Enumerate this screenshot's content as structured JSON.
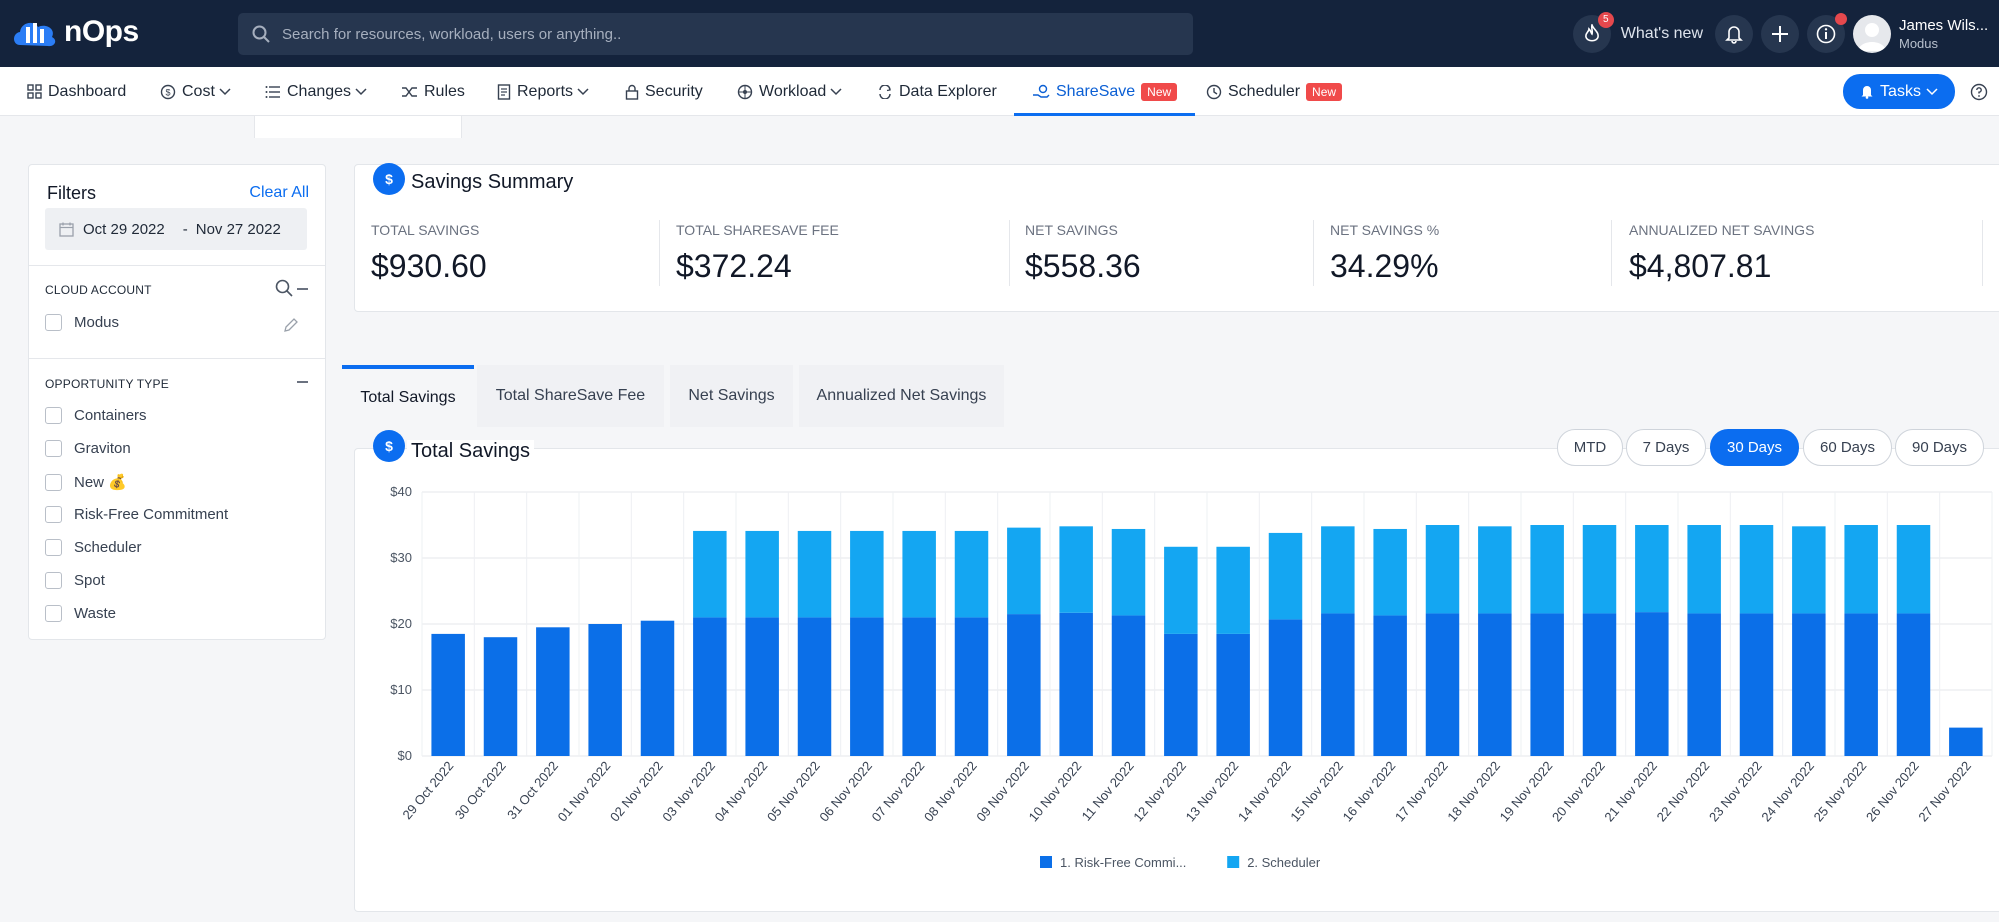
{
  "app": {
    "name": "nOps",
    "brand_color": "#0b6df0"
  },
  "search": {
    "placeholder": "Search for resources, workload, users or anything.."
  },
  "header": {
    "notifications_badge": "5",
    "whats_new": "What's new",
    "user_name": "James Wils...",
    "user_org": "Modus"
  },
  "nav": {
    "dashboard": "Dashboard",
    "cost": "Cost",
    "changes": "Changes",
    "rules": "Rules",
    "reports": "Reports",
    "security": "Security",
    "workload": "Workload",
    "data_explorer": "Data Explorer",
    "sharesave": "ShareSave",
    "scheduler": "Scheduler",
    "new_tag": "New",
    "tasks": "Tasks"
  },
  "filters": {
    "title": "Filters",
    "clear_all": "Clear All",
    "date_from": "Oct 29 2022",
    "date_sep": "-",
    "date_to": "Nov 27 2022",
    "cloud_account": {
      "heading": "CLOUD ACCOUNT",
      "items": [
        "Modus"
      ]
    },
    "opportunity_type": {
      "heading": "OPPORTUNITY TYPE",
      "items": [
        "Containers",
        "Graviton",
        "New 💰",
        "Risk-Free Commitment",
        "Scheduler",
        "Spot",
        "Waste"
      ]
    }
  },
  "summary": {
    "title": "Savings Summary",
    "metrics": [
      {
        "label": "TOTAL SAVINGS",
        "value": "$930.60"
      },
      {
        "label": "TOTAL SHARESAVE FEE",
        "value": "$372.24"
      },
      {
        "label": "NET SAVINGS",
        "value": "$558.36"
      },
      {
        "label": "NET SAVINGS %",
        "value": "34.29%"
      },
      {
        "label": "ANNUALIZED NET SAVINGS",
        "value": "$4,807.81"
      }
    ]
  },
  "tabs": [
    "Total Savings",
    "Total ShareSave Fee",
    "Net Savings",
    "Annualized Net Savings"
  ],
  "chart_card": {
    "title": "Total Savings",
    "ranges": [
      "MTD",
      "7 Days",
      "30 Days",
      "60 Days",
      "90 Days"
    ],
    "active_range": "30 Days"
  },
  "chart_data": {
    "type": "bar",
    "stacked": true,
    "title": "Total Savings",
    "categories": [
      "29 Oct 2022",
      "30 Oct 2022",
      "31 Oct 2022",
      "01 Nov 2022",
      "02 Nov 2022",
      "03 Nov 2022",
      "04 Nov 2022",
      "05 Nov 2022",
      "06 Nov 2022",
      "07 Nov 2022",
      "08 Nov 2022",
      "09 Nov 2022",
      "10 Nov 2022",
      "11 Nov 2022",
      "12 Nov 2022",
      "13 Nov 2022",
      "14 Nov 2022",
      "15 Nov 2022",
      "16 Nov 2022",
      "17 Nov 2022",
      "18 Nov 2022",
      "19 Nov 2022",
      "20 Nov 2022",
      "21 Nov 2022",
      "22 Nov 2022",
      "23 Nov 2022",
      "24 Nov 2022",
      "25 Nov 2022",
      "26 Nov 2022",
      "27 Nov 2022"
    ],
    "series": [
      {
        "name": "1. Risk-Free Commi...",
        "color": "#0b6fe8",
        "values": [
          18.5,
          18.0,
          19.5,
          20.0,
          20.5,
          21.0,
          21.0,
          21.0,
          21.0,
          21.0,
          21.0,
          21.5,
          21.7,
          21.3,
          18.5,
          18.5,
          20.7,
          21.6,
          21.3,
          21.6,
          21.6,
          21.6,
          21.6,
          21.8,
          21.6,
          21.6,
          21.6,
          21.6,
          21.6,
          4.3
        ]
      },
      {
        "name": "2. Scheduler",
        "color": "#14a6f2",
        "values": [
          0,
          0,
          0,
          0,
          0,
          13.1,
          13.1,
          13.1,
          13.1,
          13.1,
          13.1,
          13.1,
          13.1,
          13.1,
          13.2,
          13.2,
          13.1,
          13.2,
          13.1,
          13.4,
          13.2,
          13.4,
          13.4,
          13.2,
          13.4,
          13.4,
          13.2,
          13.4,
          13.4,
          0
        ]
      }
    ],
    "ylim": [
      0,
      40
    ],
    "yticks": [
      "$0",
      "$10",
      "$20",
      "$30",
      "$40"
    ],
    "xlabel": "",
    "ylabel": "",
    "legend": "bottom-center"
  }
}
